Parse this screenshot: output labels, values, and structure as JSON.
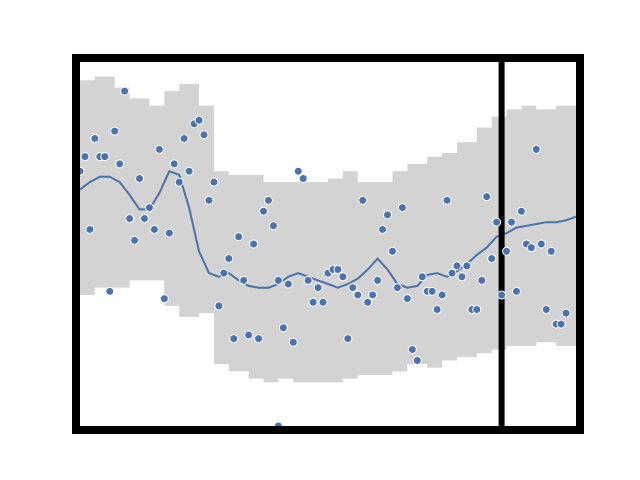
{
  "chart_data": {
    "type": "scatter",
    "title": "",
    "xlabel": "",
    "ylabel": "",
    "x_range": [
      0,
      100
    ],
    "y_range": [
      0,
      100
    ],
    "grid": false,
    "colors": {
      "points": "#4a72ad",
      "point_edge": "#ffffff",
      "trend_line": "#4a72ad",
      "band": "#d3d3d3",
      "frame": "#000000",
      "marker_line": "#000000"
    },
    "vertical_marker_x": 85,
    "band": {
      "x": [
        0,
        3,
        7,
        10,
        14,
        17,
        20,
        24,
        27,
        30,
        34,
        37,
        40,
        43,
        46,
        50,
        53,
        56,
        60,
        63,
        66,
        70,
        73,
        76,
        80,
        83,
        86,
        89,
        92,
        96,
        100
      ],
      "upper": [
        95,
        96,
        93,
        90,
        88,
        92,
        94,
        88,
        70,
        69,
        69,
        67,
        67,
        67,
        67,
        68,
        70,
        67,
        67,
        70,
        72,
        74,
        75,
        78,
        82,
        85,
        87,
        88,
        87,
        88,
        91
      ],
      "lower": [
        36,
        38,
        38,
        40,
        40,
        33,
        30,
        31,
        17,
        15,
        13,
        12,
        13,
        12,
        12,
        12,
        13,
        14,
        14,
        15,
        17,
        16,
        18,
        19,
        20,
        21,
        22,
        22,
        23,
        22,
        15
      ]
    },
    "trend": {
      "x": [
        0,
        2,
        4,
        6,
        8,
        10,
        12,
        14,
        16,
        18,
        20,
        22,
        24,
        26,
        28,
        30,
        32,
        34,
        36,
        38,
        40,
        42,
        44,
        46,
        48,
        50,
        52,
        54,
        56,
        58,
        60,
        62,
        64,
        66,
        68,
        70,
        72,
        74,
        76,
        78,
        80,
        82,
        84,
        86,
        88,
        90,
        92,
        94,
        96,
        98,
        100
      ],
      "y": [
        65,
        67,
        68.5,
        68.5,
        67,
        63.5,
        59.5,
        59.5,
        64,
        70,
        69,
        60,
        48,
        42,
        41,
        42,
        40,
        38.5,
        38,
        38,
        39,
        41,
        42,
        41,
        40,
        39,
        38,
        39,
        40.5,
        43,
        46,
        43,
        39,
        38,
        38.5,
        41.5,
        42,
        41,
        42.5,
        44.5,
        47,
        49,
        52,
        53,
        54.5,
        55,
        55.5,
        56,
        56,
        56.5,
        57.5
      ]
    },
    "points": [
      [
        0,
        70
      ],
      [
        1,
        74
      ],
      [
        2,
        54
      ],
      [
        3,
        79
      ],
      [
        4,
        74
      ],
      [
        5,
        74
      ],
      [
        6,
        37
      ],
      [
        7,
        81
      ],
      [
        8,
        72
      ],
      [
        9,
        92
      ],
      [
        10,
        57
      ],
      [
        11,
        51
      ],
      [
        12,
        68
      ],
      [
        13,
        57
      ],
      [
        14,
        60
      ],
      [
        15,
        54
      ],
      [
        16,
        76
      ],
      [
        17,
        35
      ],
      [
        18,
        53
      ],
      [
        19,
        72
      ],
      [
        20,
        67
      ],
      [
        21,
        79
      ],
      [
        22,
        70
      ],
      [
        23,
        83
      ],
      [
        24,
        84
      ],
      [
        25,
        80
      ],
      [
        26,
        62
      ],
      [
        27,
        67
      ],
      [
        28,
        33
      ],
      [
        29,
        42
      ],
      [
        30,
        46
      ],
      [
        31,
        24
      ],
      [
        32,
        52
      ],
      [
        33,
        40
      ],
      [
        34,
        25
      ],
      [
        35,
        50
      ],
      [
        36,
        24
      ],
      [
        37,
        59
      ],
      [
        38,
        62
      ],
      [
        39,
        55
      ],
      [
        40,
        40
      ],
      [
        41,
        27
      ],
      [
        42,
        39
      ],
      [
        43,
        23
      ],
      [
        44,
        70
      ],
      [
        45,
        68
      ],
      [
        46,
        40
      ],
      [
        47,
        34
      ],
      [
        48,
        38
      ],
      [
        49,
        34
      ],
      [
        50,
        42
      ],
      [
        51,
        43
      ],
      [
        52,
        43
      ],
      [
        53,
        41
      ],
      [
        54,
        24
      ],
      [
        55,
        38
      ],
      [
        56,
        36
      ],
      [
        57,
        62
      ],
      [
        58,
        34
      ],
      [
        59,
        36
      ],
      [
        60,
        40
      ],
      [
        61,
        54
      ],
      [
        62,
        58
      ],
      [
        63,
        48
      ],
      [
        64,
        38
      ],
      [
        65,
        60
      ],
      [
        66,
        35
      ],
      [
        67,
        21
      ],
      [
        68,
        18
      ],
      [
        69,
        41
      ],
      [
        70,
        37
      ],
      [
        71,
        37
      ],
      [
        72,
        32
      ],
      [
        73,
        36
      ],
      [
        74,
        62
      ],
      [
        75,
        42
      ],
      [
        76,
        44
      ],
      [
        77,
        41
      ],
      [
        78,
        44
      ],
      [
        79,
        32
      ],
      [
        80,
        32
      ],
      [
        81,
        40
      ],
      [
        82,
        63
      ],
      [
        83,
        46
      ],
      [
        84,
        56
      ],
      [
        85,
        36
      ],
      [
        86,
        48
      ],
      [
        87,
        56
      ],
      [
        88,
        37
      ],
      [
        89,
        59
      ],
      [
        90,
        50
      ],
      [
        91,
        49
      ],
      [
        92,
        76
      ],
      [
        93,
        50
      ],
      [
        94,
        32
      ],
      [
        95,
        48
      ],
      [
        96,
        28
      ],
      [
        97,
        28
      ],
      [
        98,
        31
      ],
      [
        40,
        0
      ]
    ]
  }
}
